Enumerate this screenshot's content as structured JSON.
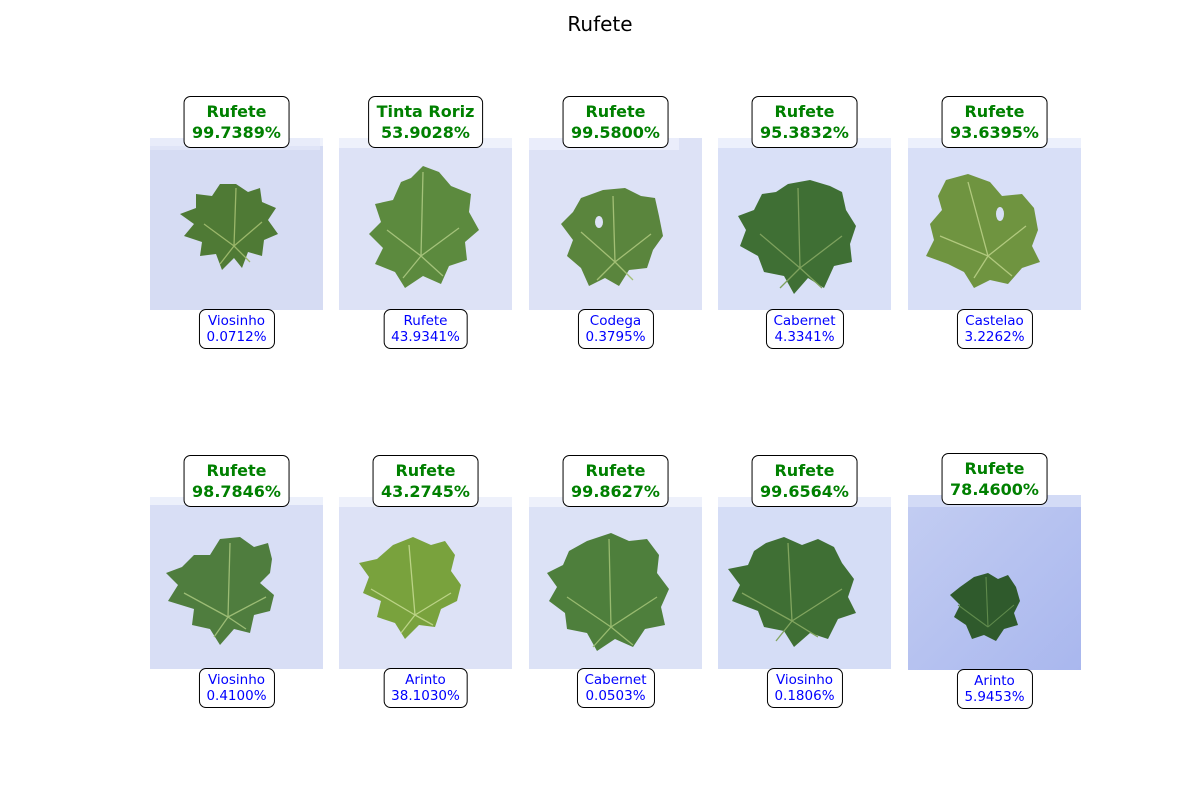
{
  "title": "Rufete",
  "colors": {
    "top_text": "#008000",
    "bottom_text": "#0000ff"
  },
  "panels": [
    {
      "top_label": "Rufete",
      "top_pct": "99.7389%",
      "bottom_label": "Viosinho",
      "bottom_pct": "0.0712%"
    },
    {
      "top_label": "Tinta Roriz",
      "top_pct": "53.9028%",
      "bottom_label": "Rufete",
      "bottom_pct": "43.9341%"
    },
    {
      "top_label": "Rufete",
      "top_pct": "99.5800%",
      "bottom_label": "Codega",
      "bottom_pct": "0.3795%"
    },
    {
      "top_label": "Rufete",
      "top_pct": "95.3832%",
      "bottom_label": "Cabernet",
      "bottom_pct": "4.3341%"
    },
    {
      "top_label": "Rufete",
      "top_pct": "93.6395%",
      "bottom_label": "Castelao",
      "bottom_pct": "3.2262%"
    },
    {
      "top_label": "Rufete",
      "top_pct": "98.7846%",
      "bottom_label": "Viosinho",
      "bottom_pct": "0.4100%"
    },
    {
      "top_label": "Rufete",
      "top_pct": "43.2745%",
      "bottom_label": "Arinto",
      "bottom_pct": "38.1030%"
    },
    {
      "top_label": "Rufete",
      "top_pct": "99.8627%",
      "bottom_label": "Cabernet",
      "bottom_pct": "0.0503%"
    },
    {
      "top_label": "Rufete",
      "top_pct": "99.6564%",
      "bottom_label": "Viosinho",
      "bottom_pct": "0.1806%"
    },
    {
      "top_label": "Rufete",
      "top_pct": "78.4600%",
      "bottom_label": "Arinto",
      "bottom_pct": "5.9453%"
    }
  ]
}
